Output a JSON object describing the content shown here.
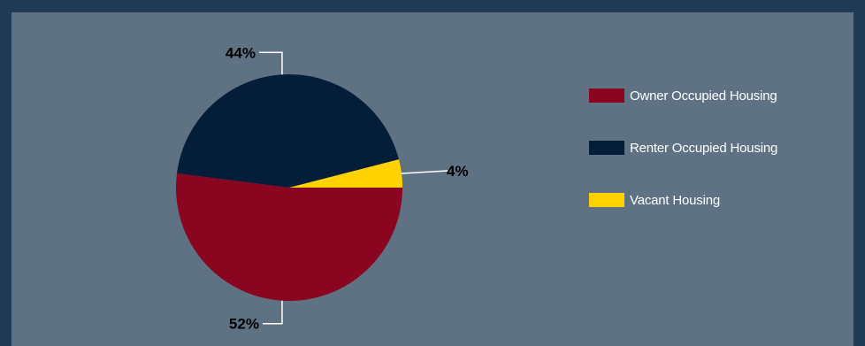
{
  "chart_data": {
    "type": "pie",
    "slices": [
      {
        "label": "Owner Occupied Housing",
        "value": 52,
        "display": "52%",
        "color": "#8a0620"
      },
      {
        "label": "Renter Occupied Housing",
        "value": 44,
        "display": "44%",
        "color": "#041d38"
      },
      {
        "label": "Vacant Housing",
        "value": 4,
        "display": "4%",
        "color": "#ffd200"
      }
    ],
    "legend_position": "right",
    "leader_color": "#ffffff"
  }
}
